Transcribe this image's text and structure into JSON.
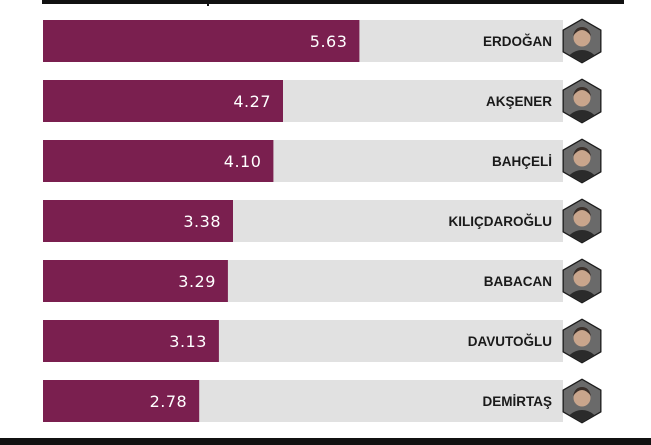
{
  "chart_data": {
    "type": "bar",
    "orientation": "horizontal",
    "categories": [
      "ERDOĞAN",
      "AKŞENER",
      "BAHÇELİ",
      "KILIÇDAROĞLU",
      "BABACAN",
      "DAVUTOĞLU",
      "DEMİRTAŞ"
    ],
    "values": [
      5.63,
      4.27,
      4.1,
      3.38,
      3.29,
      3.13,
      2.78
    ],
    "value_labels": [
      "5.63",
      "4.27",
      "4.10",
      "3.38",
      "3.29",
      "3.13",
      "2.78"
    ],
    "xlim": [
      0,
      10
    ],
    "bar_color": "#7a1f4f",
    "track_color": "#e1e1e1",
    "avatar_icons": [
      "portrait-icon",
      "portrait-icon",
      "portrait-icon",
      "portrait-icon",
      "portrait-icon",
      "portrait-icon",
      "portrait-icon"
    ],
    "title": "",
    "xlabel": "",
    "ylabel": "",
    "grid": false,
    "legend": "none"
  }
}
